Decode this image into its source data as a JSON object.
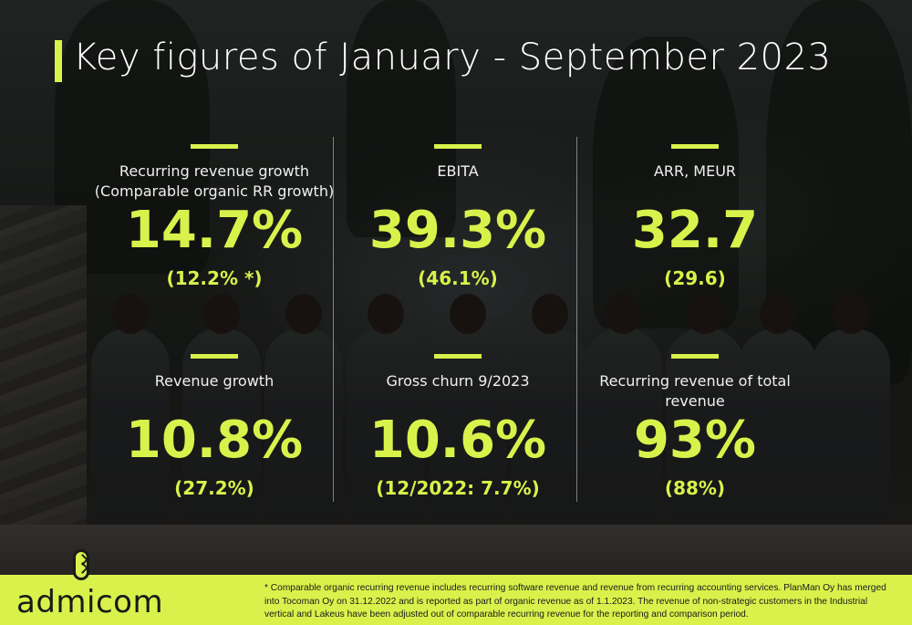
{
  "title": "Key figures of January - September 2023",
  "kpis": [
    {
      "label": "Recurring revenue growth\n(Comparable organic RR growth)",
      "value": "14.7%",
      "sub": "(12.2% *)"
    },
    {
      "label": "EBITA",
      "value": "39.3%",
      "sub": "(46.1%)"
    },
    {
      "label": "ARR, MEUR",
      "value": "32.7",
      "sub": "(29.6)"
    },
    {
      "label": "Revenue growth",
      "value": "10.8%",
      "sub": "(27.2%)"
    },
    {
      "label": "Gross churn 9/2023",
      "value": "10.6%",
      "sub": "(12/2022: 7.7%)"
    },
    {
      "label": "Recurring revenue of total\nrevenue",
      "value": "93%",
      "sub": "(88%)"
    }
  ],
  "footer": {
    "logo_text": "admicom",
    "footnote": "* Comparable organic recurring revenue includes recurring software revenue and revenue from recurring accounting services. PlanMan Oy has merged into Tocoman Oy on 31.12.2022 and is reported as part of organic revenue as of 1.1.2023. The revenue of non-strategic customers in the Industrial vertical and Lakeus have been adjusted out of comparable recurring revenue for the reporting and comparison period."
  },
  "colors": {
    "accent": "#d9f24b",
    "text": "#ffffff"
  }
}
